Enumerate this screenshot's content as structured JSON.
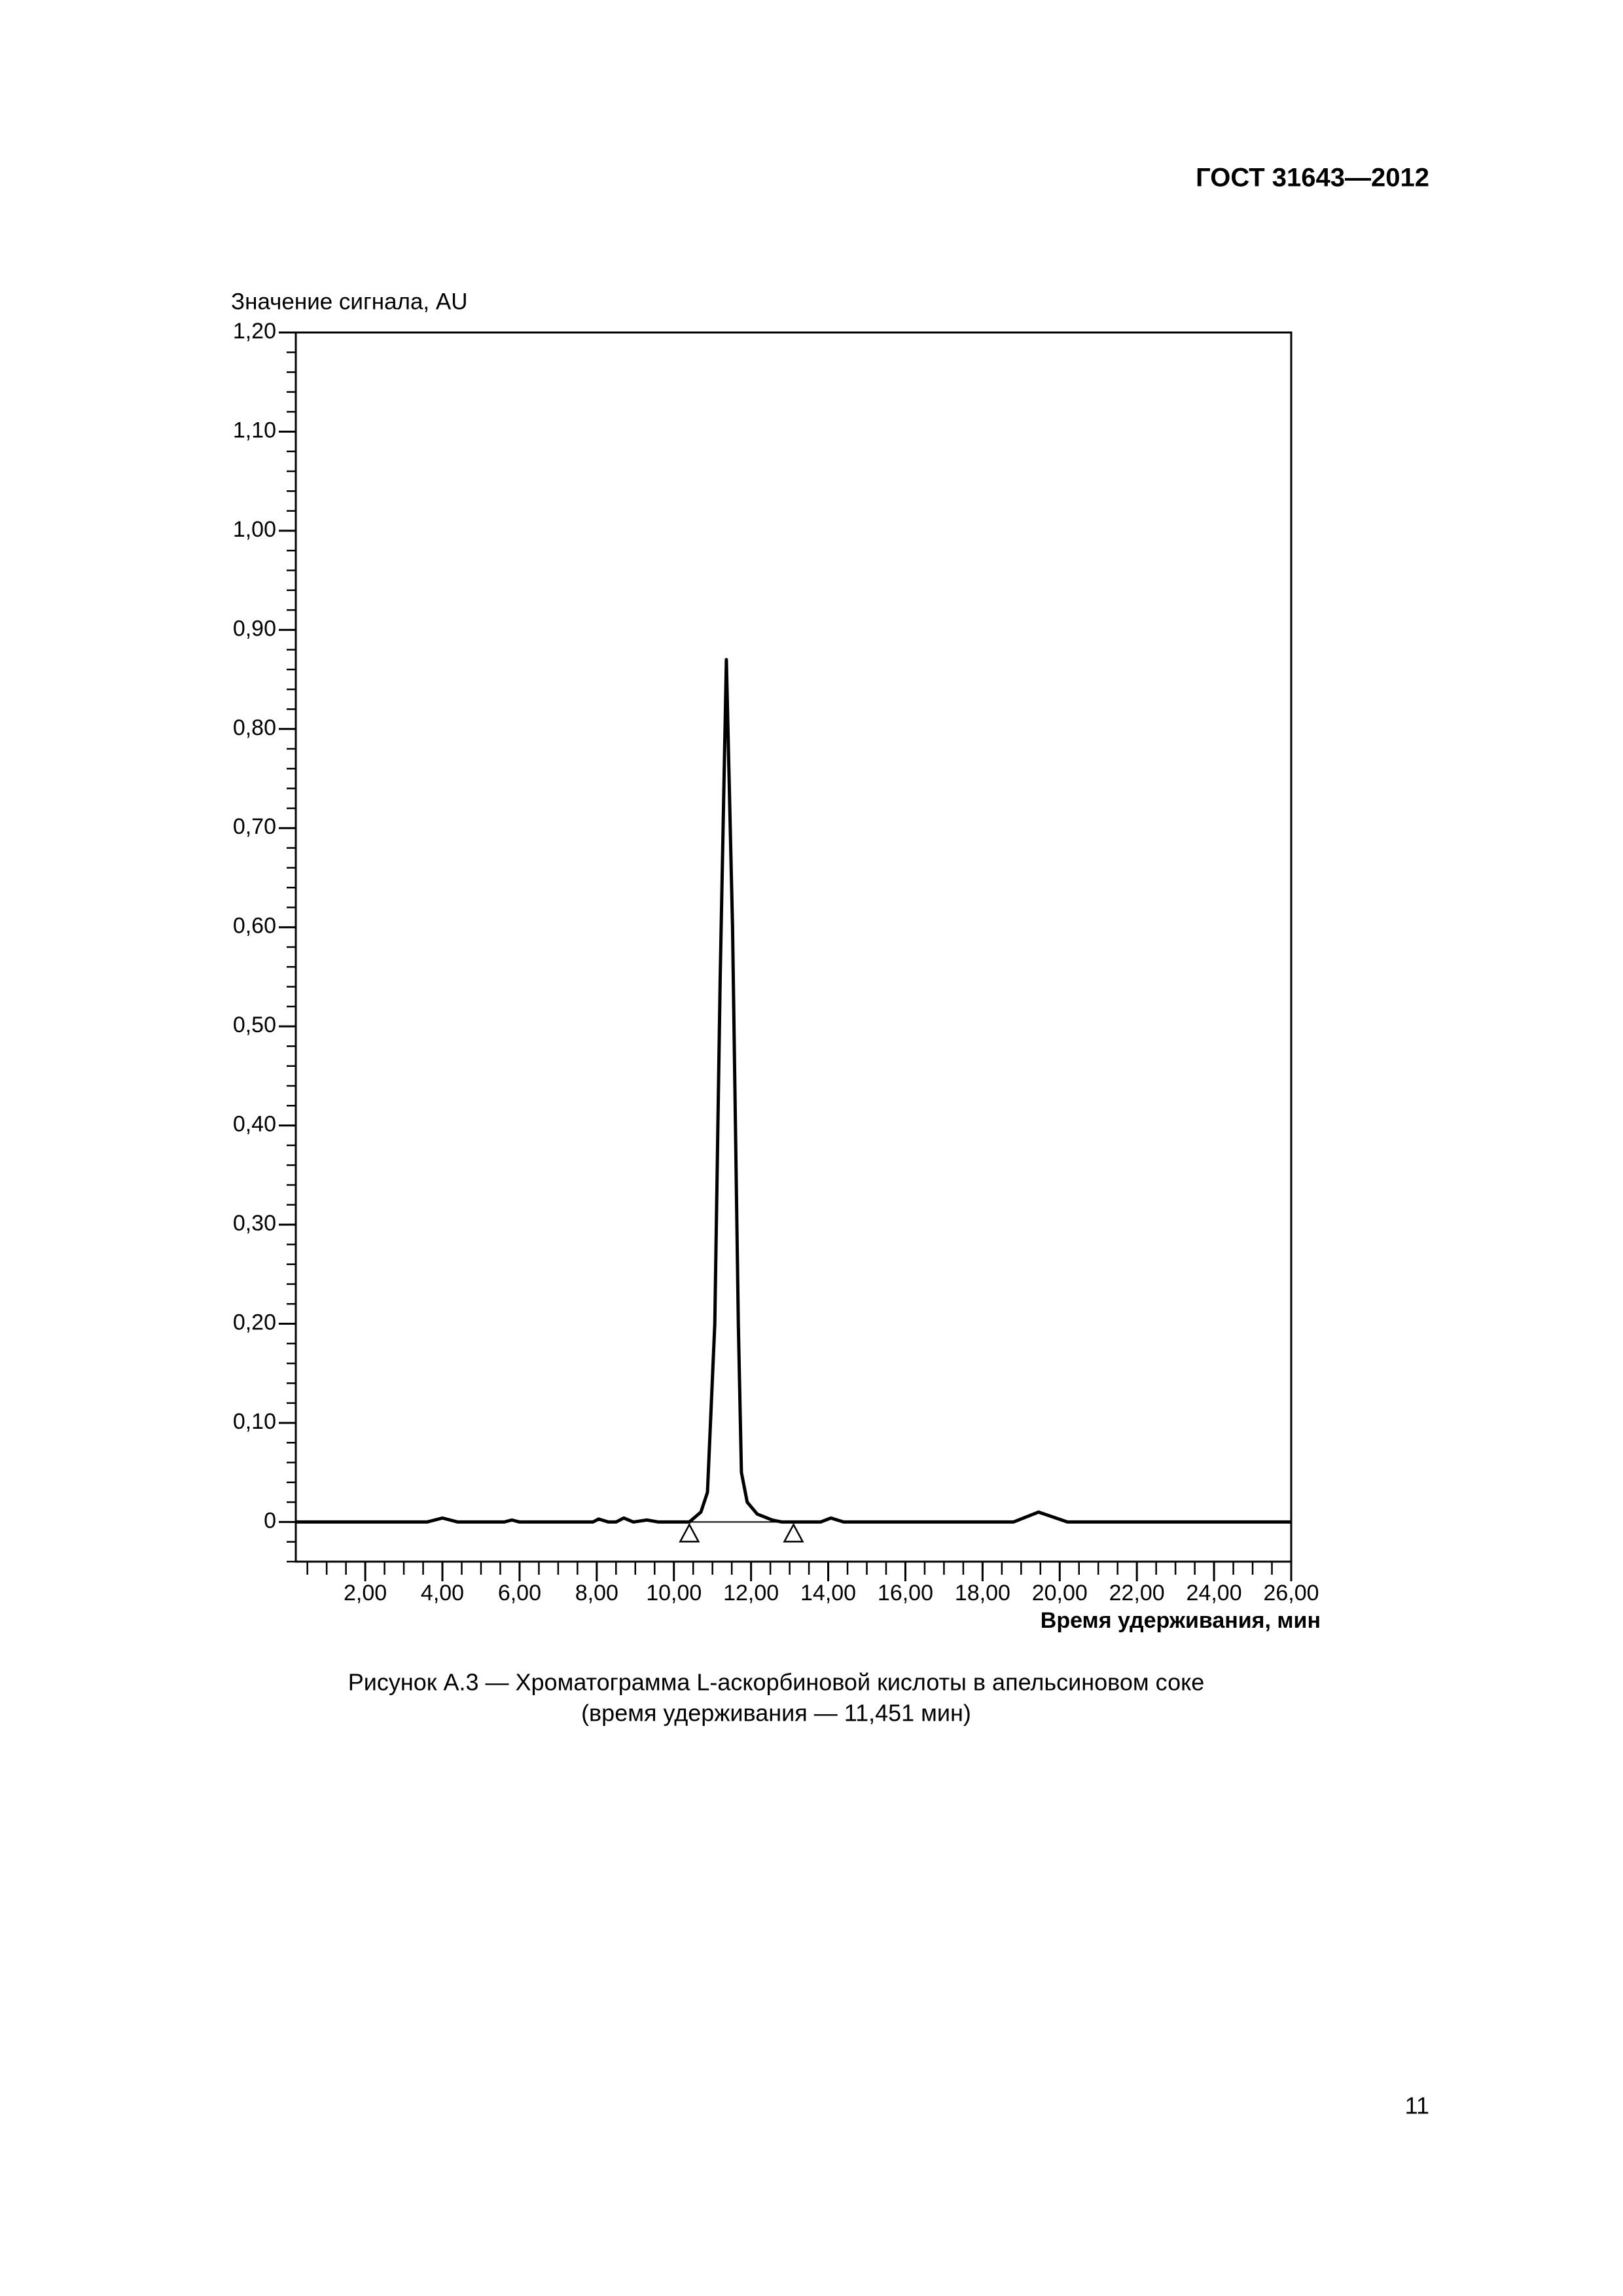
{
  "header": "ГОСТ 31643—2012",
  "chart_data": {
    "type": "line",
    "ylabel": "Значение сигнала, AU",
    "xlabel": "Время удерживания, мин",
    "xlim": [
      0.2,
      26
    ],
    "ylim": [
      -0.04,
      1.2
    ],
    "xticks": [
      {
        "value": 2,
        "label": "2,00"
      },
      {
        "value": 4,
        "label": "4,00"
      },
      {
        "value": 6,
        "label": "6,00"
      },
      {
        "value": 8,
        "label": "8,00"
      },
      {
        "value": 10,
        "label": "10,00"
      },
      {
        "value": 12,
        "label": "12,00"
      },
      {
        "value": 14,
        "label": "14,00"
      },
      {
        "value": 16,
        "label": "16,00"
      },
      {
        "value": 18,
        "label": "18,00"
      },
      {
        "value": 20,
        "label": "20,00"
      },
      {
        "value": 22,
        "label": "22,00"
      },
      {
        "value": 24,
        "label": "24,00"
      },
      {
        "value": 26,
        "label": "26,00"
      }
    ],
    "yticks": [
      0,
      {
        "value": 0.1,
        "label": "0,10"
      },
      {
        "value": 0.2,
        "label": "0,20"
      },
      {
        "value": 0.3,
        "label": "0,30"
      },
      {
        "value": 0.4,
        "label": "0,40"
      },
      {
        "value": 0.5,
        "label": "0,50"
      },
      {
        "value": 0.6,
        "label": "0,60"
      },
      {
        "value": 0.7,
        "label": "0,70"
      },
      {
        "value": 0.8,
        "label": "0,80"
      },
      {
        "value": 0.9,
        "label": "0,90"
      },
      {
        "value": 1.0,
        "label": "1,00"
      },
      {
        "value": 1.1,
        "label": "1,10"
      },
      {
        "value": 1.2,
        "label": "1,20"
      }
    ],
    "x": [
      0.2,
      3.6,
      4.0,
      4.4,
      5.6,
      5.8,
      6.0,
      7.9,
      8.05,
      8.3,
      8.5,
      8.7,
      8.95,
      9.3,
      9.6,
      10.4,
      10.7,
      10.87,
      11.06,
      11.2,
      11.36,
      11.52,
      11.67,
      11.75,
      11.9,
      12.16,
      12.55,
      12.8,
      13.8,
      14.07,
      14.4,
      18.8,
      19.45,
      20.2,
      26
    ],
    "series": [
      {
        "color": "#000000",
        "values": [
          0,
          0,
          0.004,
          0,
          0,
          0.002,
          0,
          0,
          0.003,
          0,
          0,
          0.004,
          0,
          0.002,
          0,
          0,
          0.01,
          0.03,
          0.2,
          0.55,
          0.87,
          0.6,
          0.2,
          0.05,
          0.02,
          0.008,
          0.002,
          0,
          0,
          0.004,
          0,
          0,
          0.01,
          0,
          0
        ]
      }
    ],
    "markers_x": [
      10.4,
      13.1
    ]
  },
  "caption": [
    "Рисунок А.3 — Хроматограмма L-аскорбиновой кислоты в апельсиновом соке",
    "(время удерживания — 11,451 мин)"
  ],
  "page_number": "11"
}
